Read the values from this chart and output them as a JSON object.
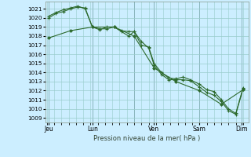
{
  "background_color": "#cceeff",
  "grid_color": "#99cccc",
  "line_color": "#2d6a2d",
  "marker_color": "#2d6a2d",
  "xlabel": "Pression niveau de la mer( hPa )",
  "ylim": [
    1008.5,
    1021.8
  ],
  "yticks": [
    1009,
    1010,
    1011,
    1012,
    1013,
    1014,
    1015,
    1016,
    1017,
    1018,
    1019,
    1020,
    1021
  ],
  "xlim": [
    -2,
    222
  ],
  "xlabel_ticks": [
    2,
    50,
    96,
    118,
    168,
    214
  ],
  "xlabel_labels": [
    "Jeu",
    "Lun",
    "Lun",
    "Ven",
    "Sam",
    "Dim"
  ],
  "day_vlines": [
    2,
    50,
    96,
    118,
    168,
    214
  ],
  "series1_x": [
    2,
    10,
    18,
    26,
    34,
    42,
    50,
    58,
    66,
    74,
    82,
    90,
    96,
    104,
    112,
    118,
    126,
    134,
    142,
    150,
    158,
    168,
    176,
    184,
    192,
    200,
    208,
    216
  ],
  "series1_y": [
    1020.0,
    1020.5,
    1020.7,
    1021.0,
    1021.2,
    1021.1,
    1019.0,
    1018.7,
    1019.0,
    1019.0,
    1018.6,
    1018.5,
    1018.5,
    1017.0,
    1016.8,
    1015.0,
    1014.0,
    1013.4,
    1013.3,
    1013.5,
    1013.2,
    1012.7,
    1012.1,
    1011.9,
    1011.0,
    1010.0,
    1009.5,
    1012.3
  ],
  "series2_x": [
    2,
    10,
    18,
    26,
    34,
    42,
    50,
    58,
    66,
    74,
    82,
    90,
    96,
    104,
    112,
    118,
    126,
    134,
    142,
    150,
    158,
    168,
    176,
    184,
    192,
    200,
    208,
    216
  ],
  "series2_y": [
    1020.2,
    1020.6,
    1020.9,
    1021.1,
    1021.3,
    1021.0,
    1019.0,
    1018.8,
    1018.8,
    1019.0,
    1018.5,
    1018.0,
    1018.5,
    1017.4,
    1016.7,
    1014.8,
    1013.8,
    1013.2,
    1013.2,
    1013.2,
    1013.1,
    1012.4,
    1011.8,
    1011.5,
    1010.8,
    1009.8,
    1009.4,
    1012.2
  ],
  "series3_x": [
    2,
    26,
    50,
    74,
    96,
    118,
    142,
    168,
    192,
    216
  ],
  "series3_y": [
    1017.8,
    1018.6,
    1019.0,
    1019.0,
    1018.0,
    1014.5,
    1013.0,
    1012.0,
    1010.5,
    1012.1
  ]
}
